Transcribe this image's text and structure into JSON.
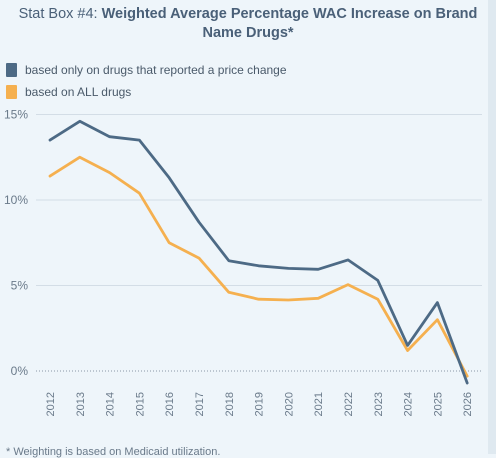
{
  "title": {
    "prefix": "Stat Box #4: ",
    "main": "Weighted Average Percentage WAC Increase on Brand Name Drugs*"
  },
  "footnote": "* Weighting is based on Medicaid utilization.",
  "colors": {
    "series_price_change": "#4d6a85",
    "series_all": "#f5b04f",
    "grid": "#d3dde6",
    "zero": "#8a98a6"
  },
  "chart_data": {
    "type": "line",
    "x": [
      "2012",
      "2013",
      "2014",
      "2015",
      "2016",
      "2017",
      "2018",
      "2019",
      "2020",
      "2021",
      "2022",
      "2023",
      "2024",
      "2025",
      "2026"
    ],
    "series": [
      {
        "name": "based only on drugs that reported a price change",
        "values": [
          13.5,
          14.6,
          13.7,
          13.5,
          11.3,
          8.7,
          6.45,
          6.15,
          6.0,
          5.95,
          6.5,
          5.3,
          1.5,
          4.0,
          -0.7
        ]
      },
      {
        "name": "based on ALL drugs",
        "values": [
          11.4,
          12.5,
          11.6,
          10.4,
          7.5,
          6.6,
          4.6,
          4.2,
          4.15,
          4.25,
          5.05,
          4.2,
          1.2,
          3.0,
          -0.3
        ]
      }
    ],
    "yticks": [
      "0%",
      "5%",
      "10%",
      "15%"
    ],
    "ylim": [
      -1,
      15
    ],
    "grid": true,
    "legend": "top-left"
  }
}
